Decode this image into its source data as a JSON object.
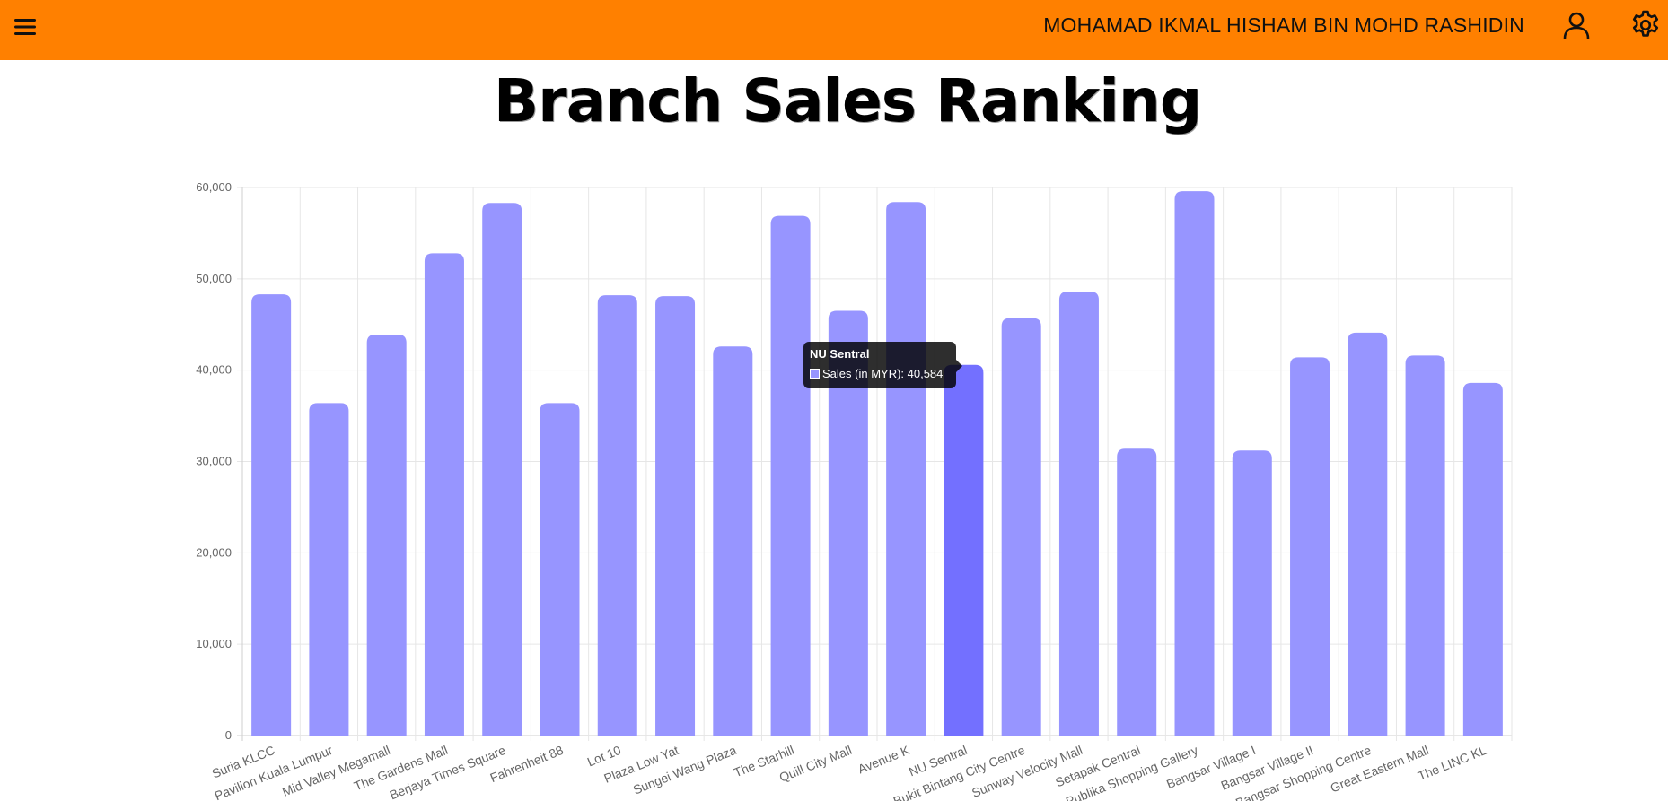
{
  "header": {
    "user_name": "MOHAMAD IKMAL HISHAM BIN MOHD RASHIDIN",
    "menu_icon": "hamburger-menu-icon",
    "profile_icon": "user-profile-icon",
    "settings_icon": "gear-icon",
    "background_color": "#ff8000"
  },
  "page": {
    "title": "Branch Sales Ranking"
  },
  "chart_data": {
    "type": "bar",
    "categories": [
      "Suria KLCC",
      "Pavilion Kuala Lumpur",
      "Mid Valley Megamall",
      "The Gardens Mall",
      "Berjaya Times Square",
      "Fahrenheit 88",
      "Lot 10",
      "Plaza Low Yat",
      "Sungei Wang Plaza",
      "The Starhill",
      "Quill City Mall",
      "Avenue K",
      "NU Sentral",
      "Bukit Bintang City Centre",
      "Sunway Velocity Mall",
      "Setapak Central",
      "Publika Shopping Gallery",
      "Bangsar Village I",
      "Bangsar Village II",
      "Bangsar Shopping Centre",
      "Great Eastern Mall",
      "The LINC KL"
    ],
    "series": [
      {
        "name": "Sales (in MYR)",
        "values": [
          48300,
          36400,
          43900,
          52800,
          58300,
          36400,
          48200,
          48100,
          42600,
          56900,
          46500,
          58400,
          40584,
          45700,
          48600,
          31400,
          59600,
          31200,
          41400,
          44100,
          41600,
          38600
        ],
        "color": "#9795ff",
        "hover_color": "#7370ff"
      }
    ],
    "ylim": [
      0,
      60000
    ],
    "yticks": [
      "0",
      "10,000",
      "20,000",
      "30,000",
      "40,000",
      "50,000",
      "60,000"
    ],
    "grid": true,
    "legend": "none",
    "highlighted_index": 12,
    "tooltip": {
      "title": "NU Sentral",
      "label": "Sales (in MYR): 40,584"
    }
  }
}
